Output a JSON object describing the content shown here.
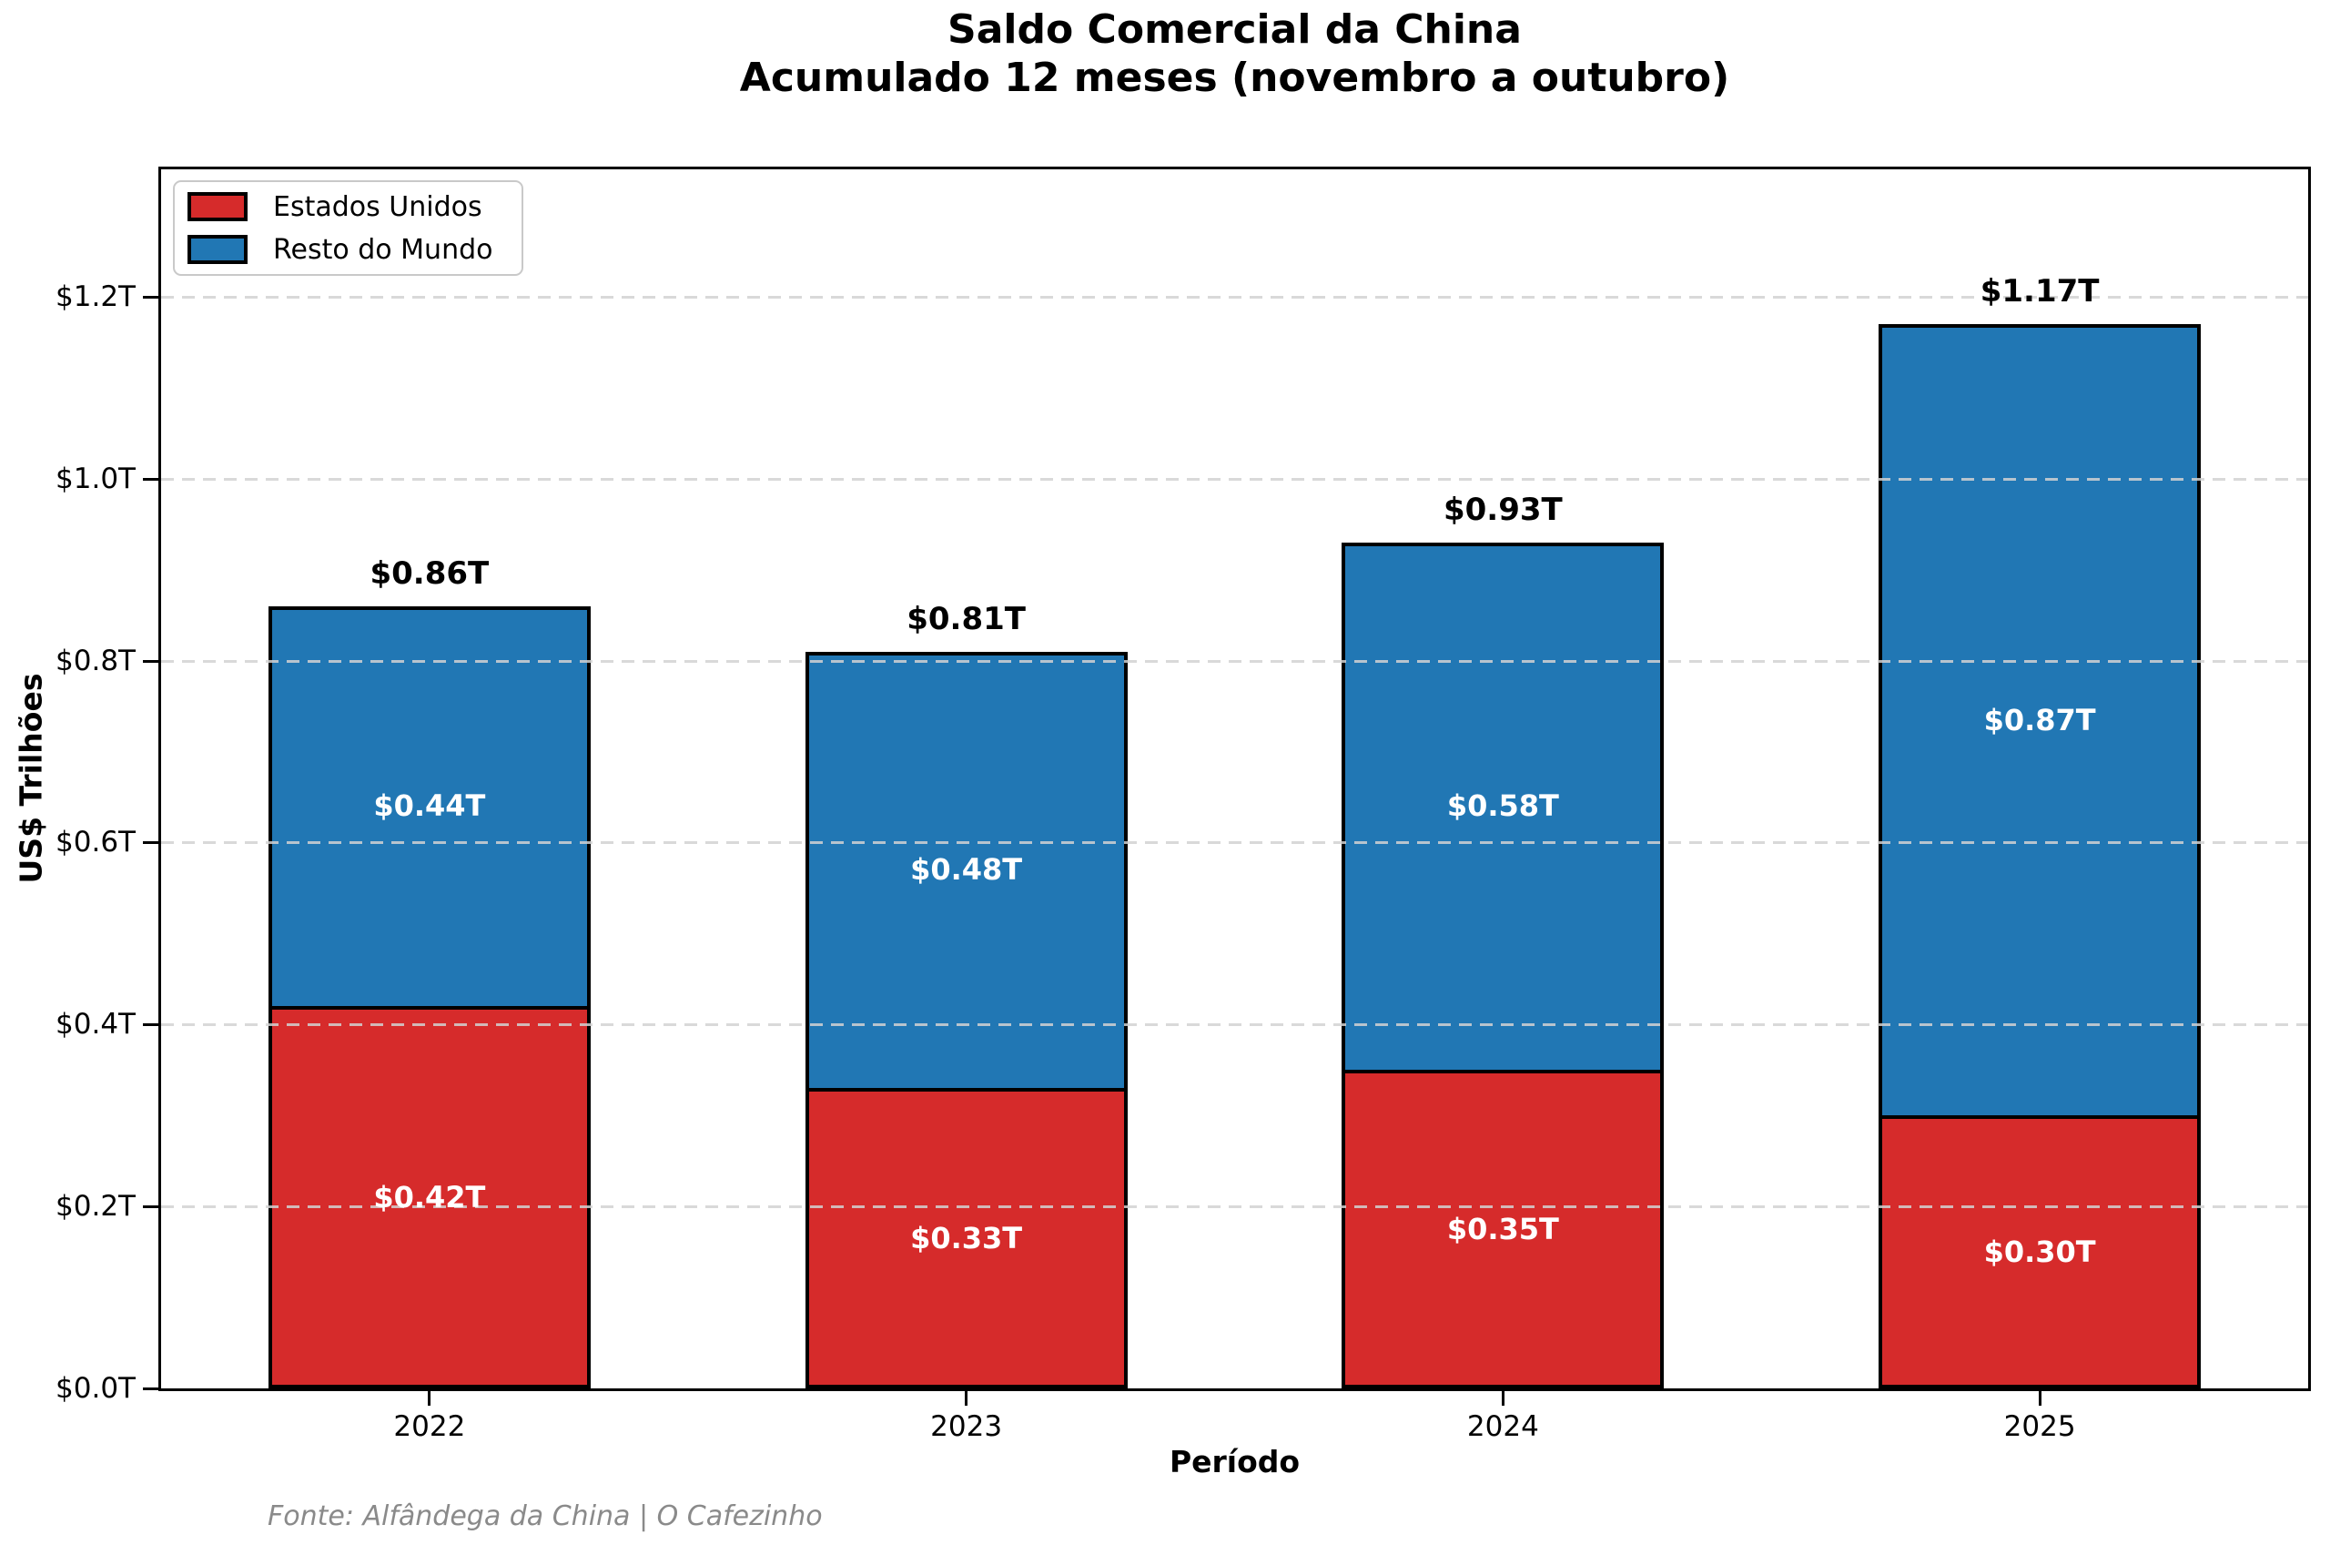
{
  "header": {
    "title_line1": "Saldo Comercial da China",
    "title_line2": "Acumulado 12 meses (novembro a outubro)"
  },
  "chart_data": {
    "type": "bar",
    "stacked": true,
    "title": "Saldo Comercial da China",
    "subtitle": "Acumulado 12 meses (novembro a outubro)",
    "xlabel": "Período",
    "ylabel": "US$ Trilhões",
    "categories": [
      "2022",
      "2023",
      "2024",
      "2025"
    ],
    "series": [
      {
        "name": "Estados Unidos",
        "color": "#d62b2b",
        "values": [
          0.42,
          0.33,
          0.35,
          0.3
        ],
        "labels": [
          "$0.42T",
          "$0.33T",
          "$0.35T",
          "$0.30T"
        ]
      },
      {
        "name": "Resto do Mundo",
        "color": "#2177b4",
        "values": [
          0.44,
          0.48,
          0.58,
          0.87
        ],
        "labels": [
          "$0.44T",
          "$0.48T",
          "$0.58T",
          "$0.87T"
        ]
      }
    ],
    "totals": [
      0.86,
      0.81,
      0.93,
      1.17
    ],
    "total_labels": [
      "$0.86T",
      "$0.81T",
      "$0.93T",
      "$1.17T"
    ],
    "ytick_values": [
      0.0,
      0.2,
      0.4,
      0.6,
      0.8,
      1.0,
      1.2
    ],
    "ytick_labels": [
      "$0.0T",
      "$0.2T",
      "$0.4T",
      "$0.6T",
      "$0.8T",
      "$1.0T",
      "$1.2T"
    ],
    "ylim": [
      0,
      1.34
    ],
    "bar_width_fraction": 0.6,
    "grid": "horizontal-dashed",
    "legend_position": "upper-left",
    "bar_edge_color": "#000000"
  },
  "footer": {
    "source": "Fonte: Alfândega da China | O Cafezinho"
  }
}
